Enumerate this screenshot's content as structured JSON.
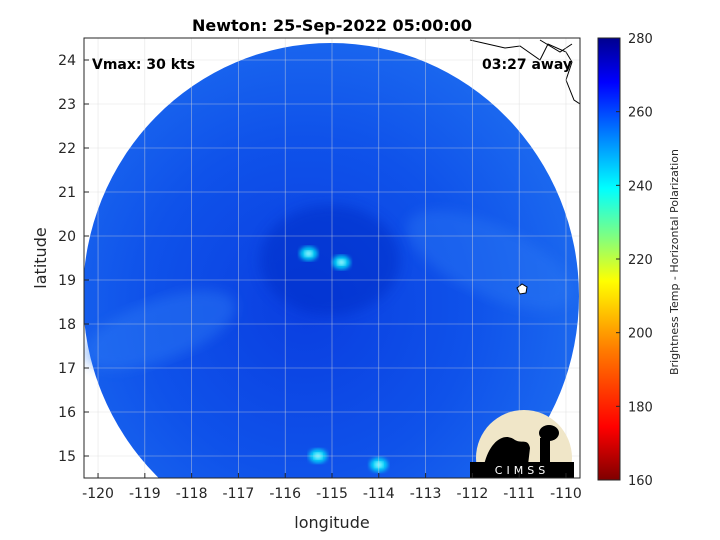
{
  "chart_data": {
    "type": "heatmap",
    "title": "Newton: 25-Sep-2022 05:00:00",
    "xlabel": "longitude",
    "ylabel": "latitude",
    "xlim": [
      -120.3,
      -109.7
    ],
    "ylim": [
      14.5,
      24.5
    ],
    "x_ticks": [
      -120,
      -119,
      -118,
      -117,
      -116,
      -115,
      -114,
      -113,
      -112,
      -111,
      -110
    ],
    "y_ticks": [
      15,
      16,
      17,
      18,
      19,
      20,
      21,
      22,
      23,
      24
    ],
    "grid": true,
    "annotations": {
      "vmax": "Vmax: 30 kts",
      "time_offset": "03:27 away"
    },
    "colorbar": {
      "label": "Brightness Temp - Horizontal Polarization",
      "range": [
        160,
        280
      ],
      "ticks": [
        160,
        180,
        200,
        220,
        240,
        260,
        280
      ],
      "colormap": [
        "#7f0000",
        "#ff0000",
        "#ff8000",
        "#ffff00",
        "#80ff80",
        "#00ffff",
        "#0080ff",
        "#0000ff",
        "#00008f"
      ]
    },
    "swath": {
      "center_lon": -115.0,
      "center_lat": 19.5,
      "background_temp_K": 258,
      "storm_center_lon": -115.3,
      "storm_center_lat": 19.8
    },
    "features": [
      {
        "name": "convection-core",
        "lon": -115.5,
        "lat": 19.6,
        "temp_K": 238
      },
      {
        "name": "convection-east",
        "lon": -114.8,
        "lat": 19.4,
        "temp_K": 240
      },
      {
        "name": "convection-south-1",
        "lon": -115.3,
        "lat": 15.0,
        "temp_K": 240
      },
      {
        "name": "convection-south-2",
        "lon": -114.0,
        "lat": 14.8,
        "temp_K": 242
      }
    ],
    "logo_text": "CIMSS"
  }
}
